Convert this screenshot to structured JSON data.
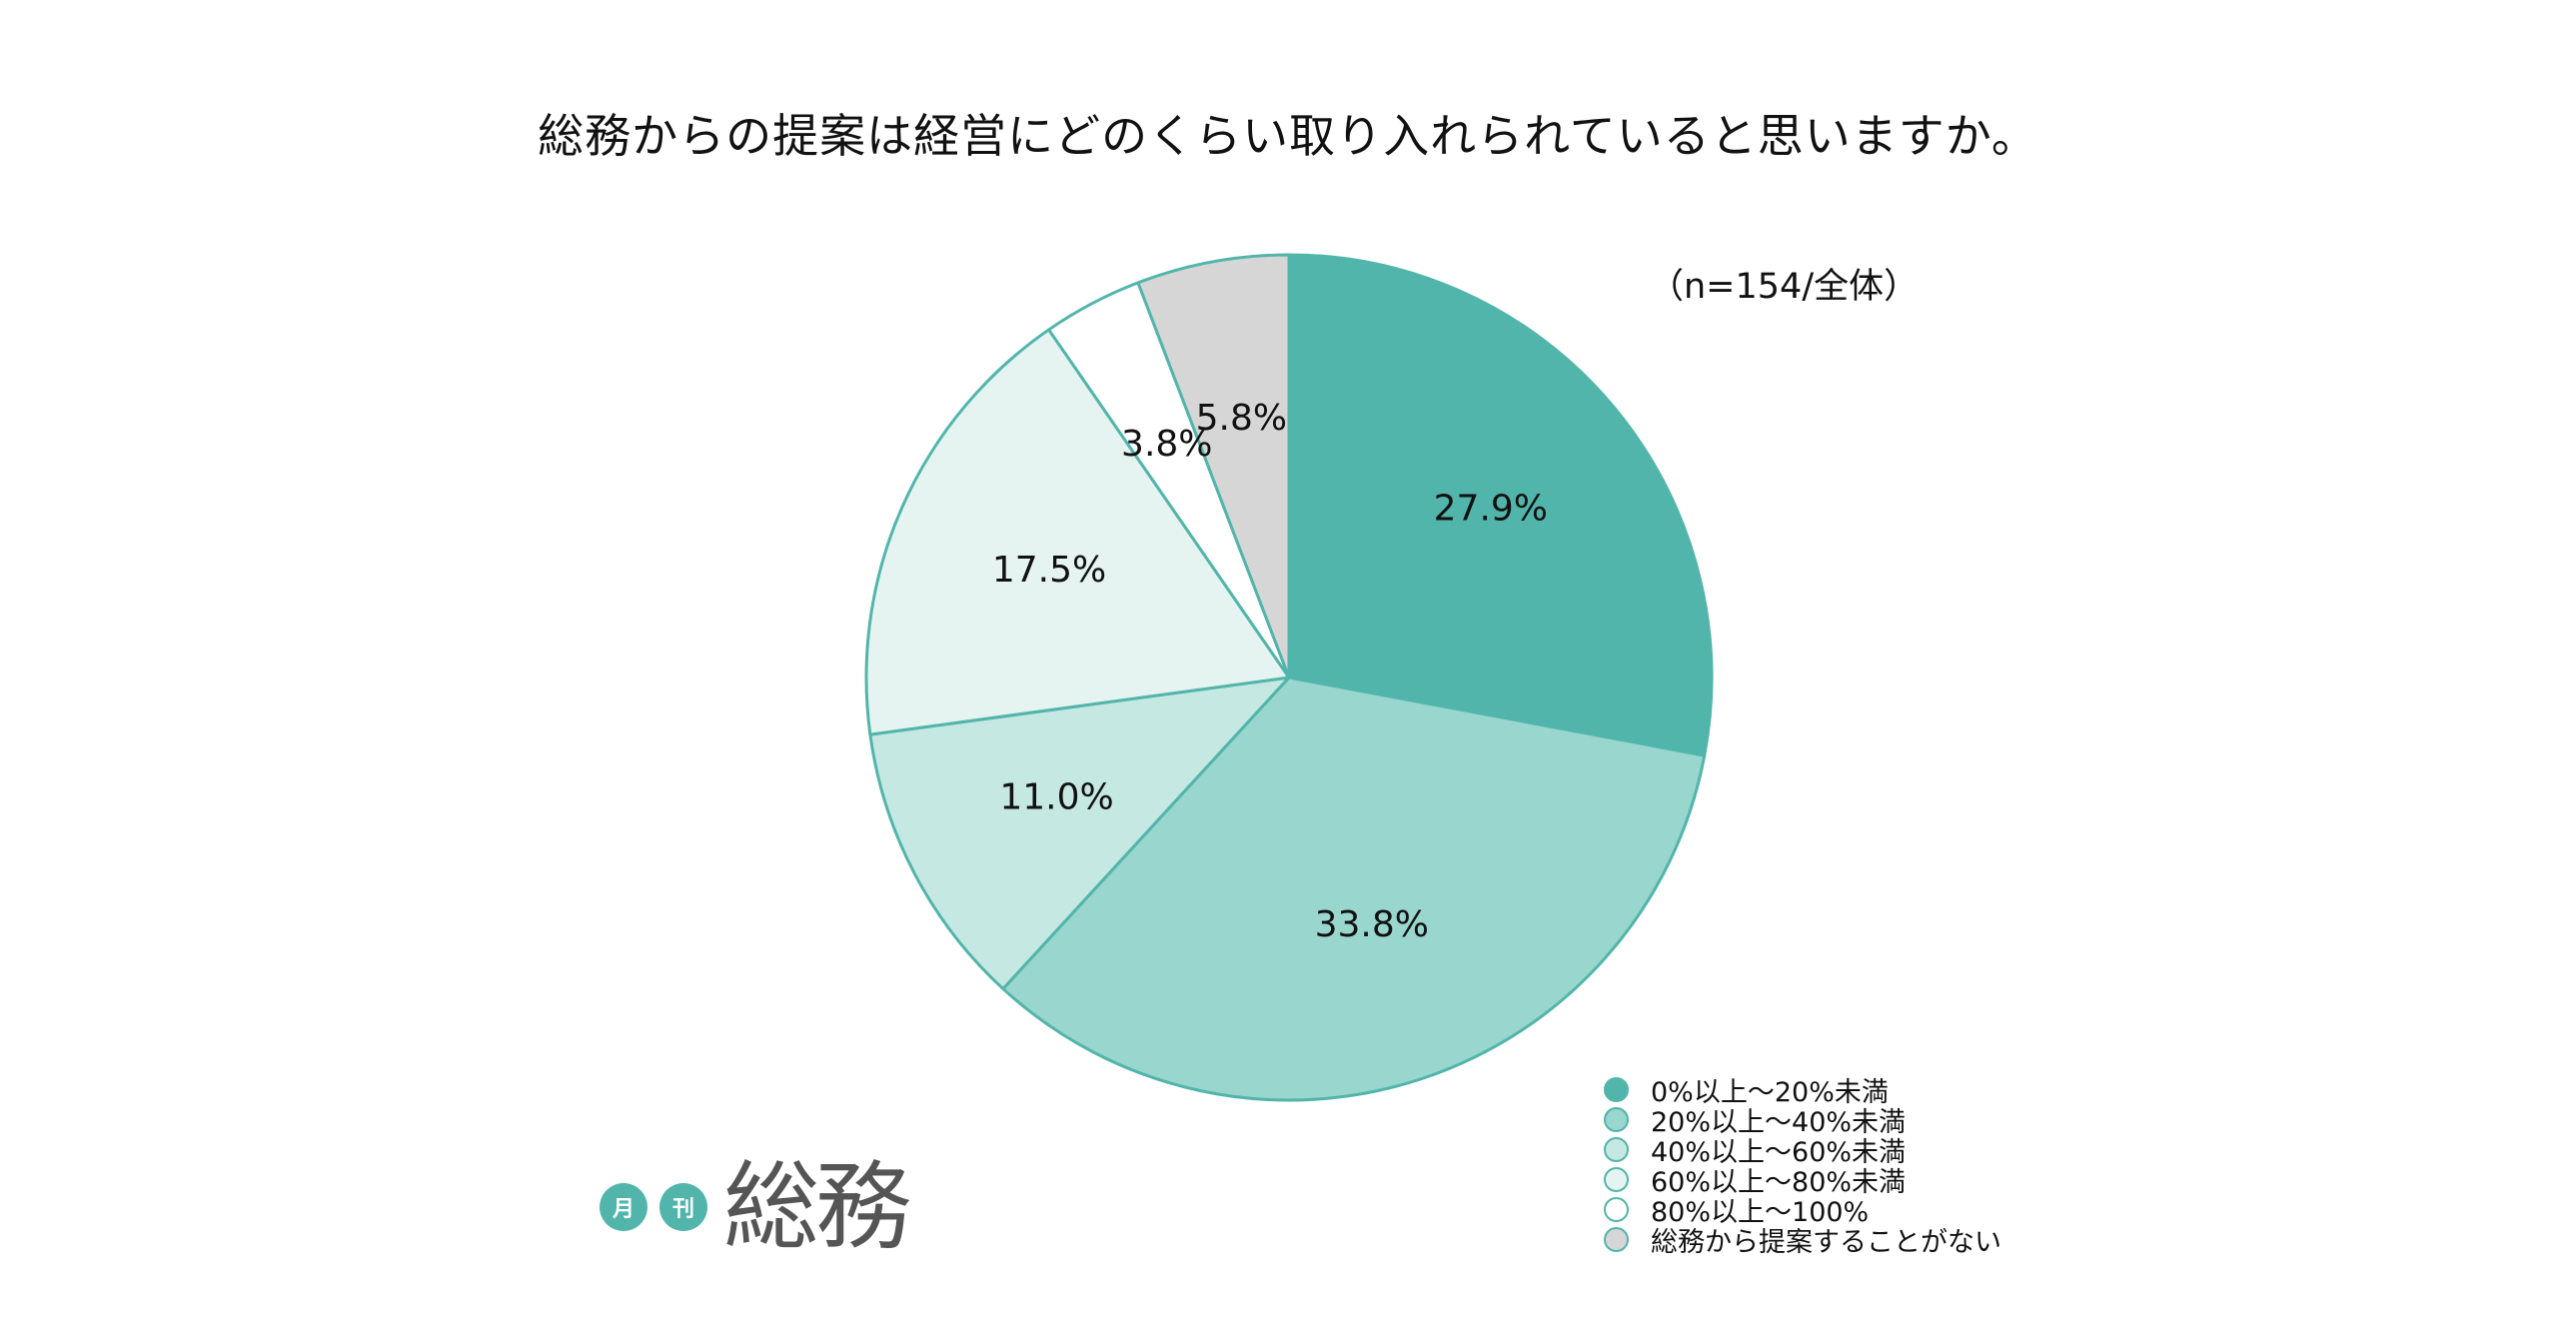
{
  "chart_data": {
    "type": "pie",
    "title": "総務からの提案は経営にどのくらい取り入れられていると思いますか。",
    "note": "（n=154/全体）",
    "start_angle": "top",
    "direction": "clockwise",
    "slices": [
      {
        "name": "0%以上〜20%未満",
        "value": 27.9,
        "label": "27.9%",
        "color": "#52b5ab"
      },
      {
        "name": "20%以上〜40%未満",
        "value": 33.8,
        "label": "33.8%",
        "color": "#99d6cd"
      },
      {
        "name": "40%以上〜60%未満",
        "value": 11.0,
        "label": "11.0%",
        "color": "#c6e8e3"
      },
      {
        "name": "60%以上〜80%未満",
        "value": 17.5,
        "label": "17.5%",
        "color": "#e5f4f1"
      },
      {
        "name": "80%以上〜100%",
        "value": 3.8,
        "label": "3.8%",
        "color": "#ffffff"
      },
      {
        "name": "総務から提案することがない",
        "value": 5.8,
        "label": "5.8%",
        "color": "#d6d6d6"
      }
    ],
    "legend_position": "bottom-right",
    "slice_border_color": "#52b5ab"
  },
  "brand": {
    "badge_1": "月",
    "badge_2": "刊",
    "name": "総務",
    "accent_color": "#52b5ab"
  }
}
